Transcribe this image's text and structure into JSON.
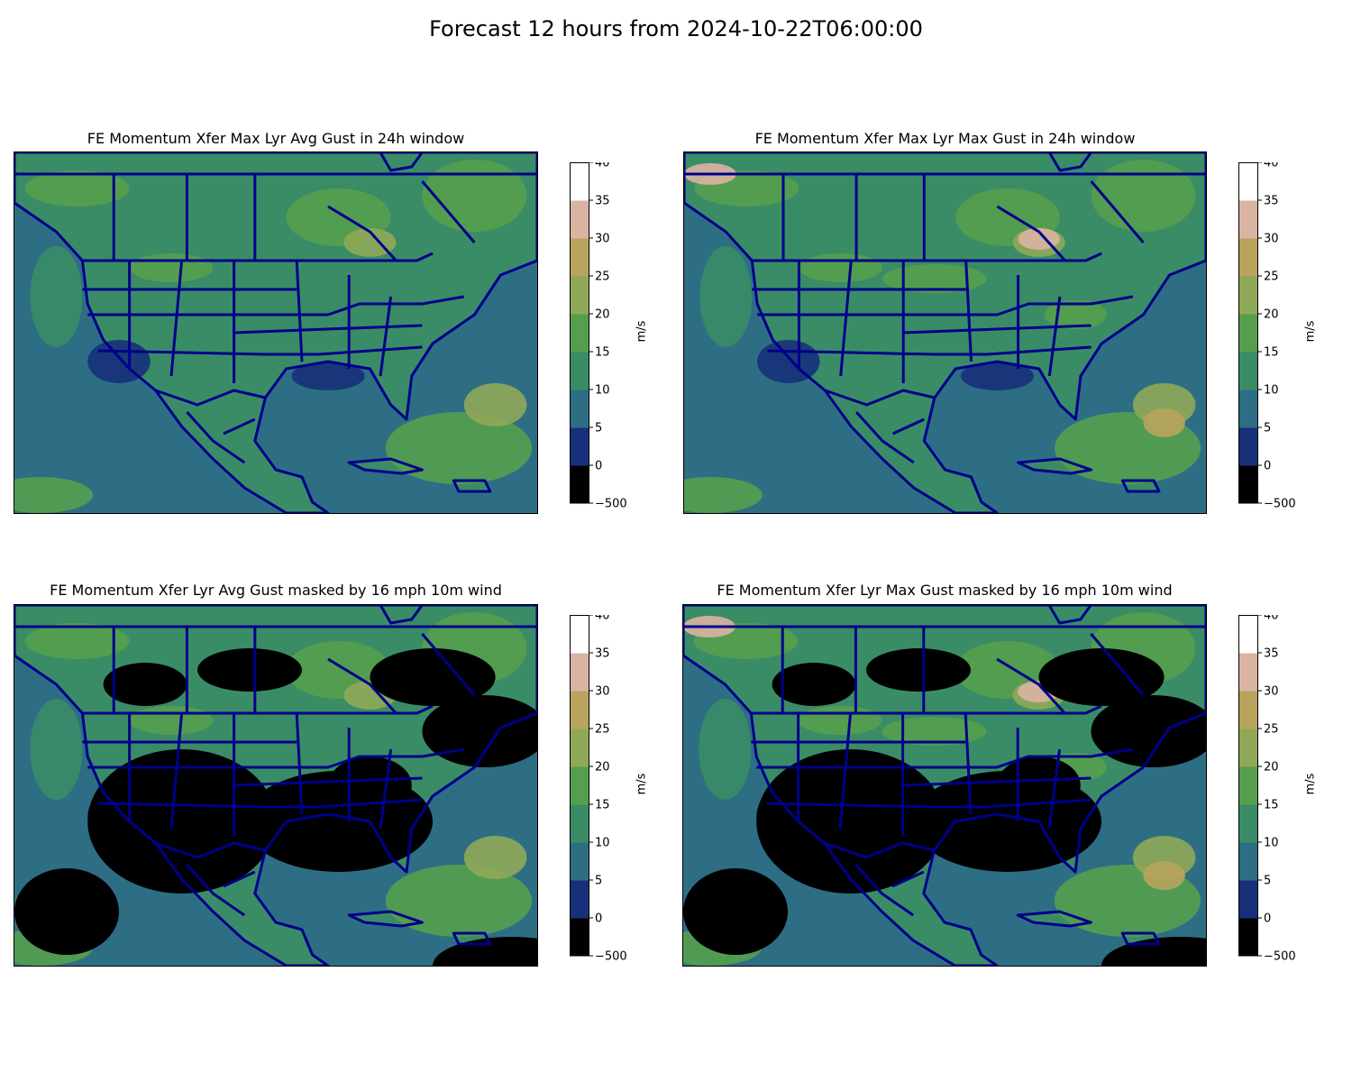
{
  "figure": {
    "title": "Forecast 12 hours from 2024-10-22T06:00:00"
  },
  "colorbar": {
    "unit": "m/s",
    "levels": [
      -500,
      0,
      5,
      10,
      15,
      20,
      25,
      30,
      35,
      40
    ],
    "tick_labels": [
      "−500",
      "0",
      "5",
      "10",
      "15",
      "20",
      "25",
      "30",
      "35",
      "40"
    ],
    "colors": [
      "#000000",
      "#17307a",
      "#2e6e84",
      "#3a8c66",
      "#559e4e",
      "#8fa858",
      "#b8a45c",
      "#dab4a2",
      "#ffffff"
    ]
  },
  "panels": [
    {
      "id": "avg-gust",
      "title": "FE Momentum Xfer Max Lyr Avg Gust in 24h window",
      "masked": false
    },
    {
      "id": "max-gust",
      "title": "FE Momentum Xfer Max Lyr Max Gust in 24h window",
      "masked": false
    },
    {
      "id": "avg-gust-masked",
      "title": "FE Momentum Xfer Lyr Avg Gust masked by 16 mph 10m wind",
      "masked": true
    },
    {
      "id": "max-gust-masked",
      "title": "FE Momentum Xfer Lyr Max Gust masked by 16 mph 10m wind",
      "masked": true
    }
  ],
  "map": {
    "region": "North America (Contiguous US, Canada, Mexico, Caribbean)",
    "border_color": "#00008b",
    "ocean_color": "#2e6e84",
    "land_color": "#3a8c66",
    "mask_color": "#000000"
  }
}
